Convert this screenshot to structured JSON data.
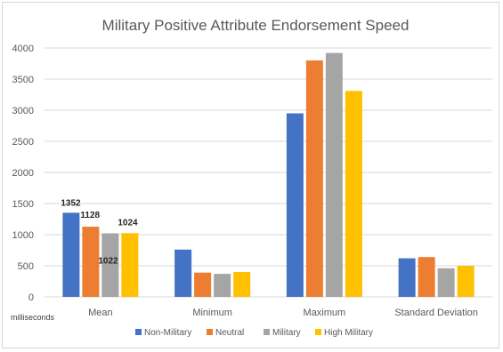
{
  "chart_data": {
    "type": "bar",
    "title": "Military Positive Attribute Endorsement Speed",
    "ylabel": "milliseconds",
    "xlabel": "",
    "categories": [
      "Mean",
      "Minimum",
      "Maximum",
      "Standard Deviation"
    ],
    "ylim": [
      0,
      4000
    ],
    "yticks": [
      0,
      500,
      1000,
      1500,
      2000,
      2500,
      3000,
      3500,
      4000
    ],
    "grid": true,
    "legend_position": "bottom",
    "series": [
      {
        "name": "Non-Military",
        "color": "#4472c4",
        "values": [
          1352,
          760,
          2950,
          620
        ]
      },
      {
        "name": "Neutral",
        "color": "#ed7d31",
        "values": [
          1128,
          390,
          3800,
          640
        ]
      },
      {
        "name": "Military",
        "color": "#a5a5a5",
        "values": [
          1022,
          370,
          3920,
          460
        ]
      },
      {
        "name": "High Military",
        "color": "#ffc000",
        "values": [
          1024,
          400,
          3310,
          500
        ]
      }
    ],
    "data_labels": [
      {
        "series": 0,
        "category": 0,
        "text": "1352"
      },
      {
        "series": 1,
        "category": 0,
        "text": "1128"
      },
      {
        "series": 2,
        "category": 0,
        "text": "1022"
      },
      {
        "series": 3,
        "category": 0,
        "text": "1024"
      }
    ]
  }
}
